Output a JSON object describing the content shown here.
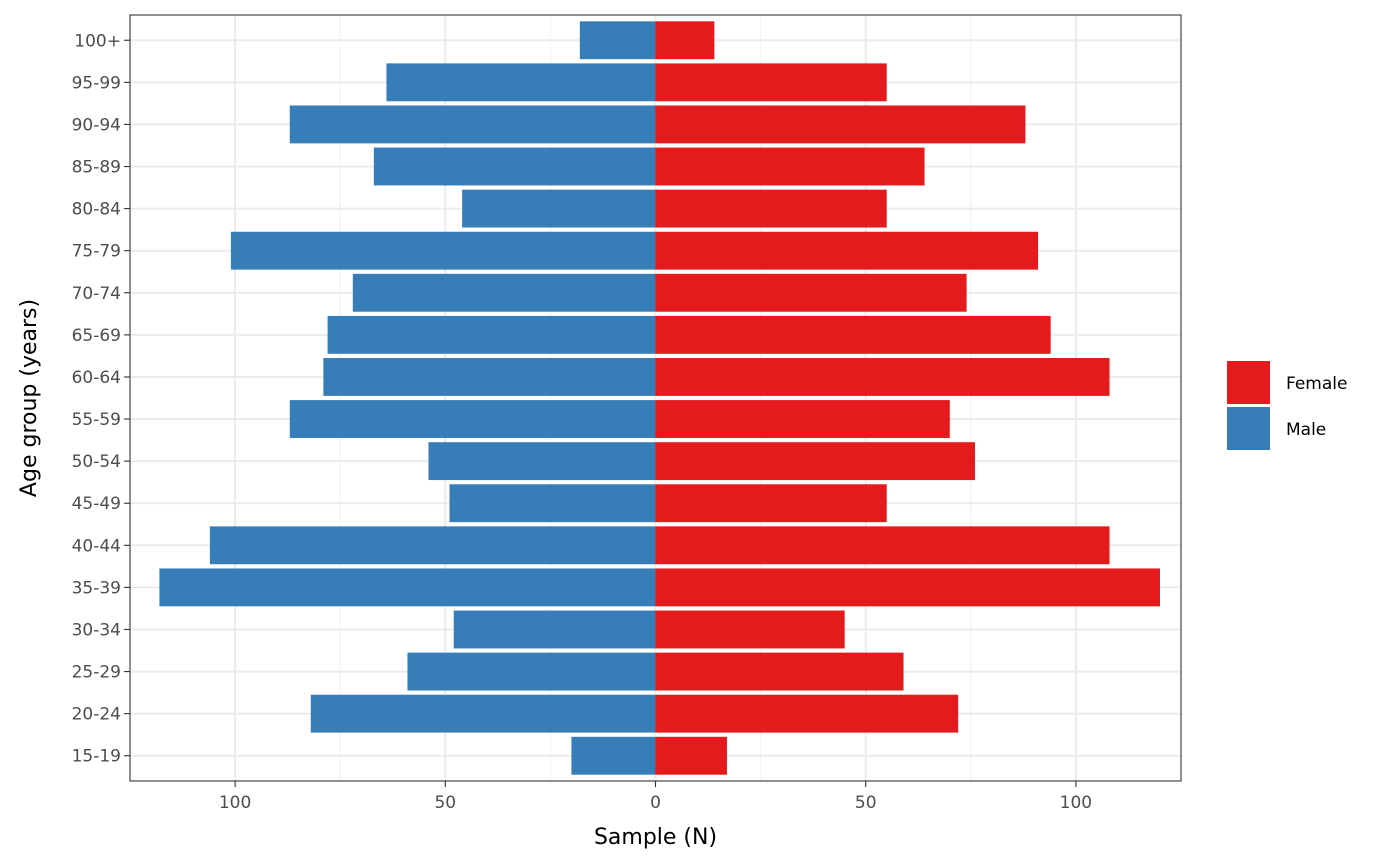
{
  "chart_data": {
    "type": "bar",
    "orientation": "horizontal",
    "layout": "population-pyramid",
    "xlabel": "Sample (N)",
    "ylabel": "Age group (years)",
    "xlim": [
      -125,
      125
    ],
    "x_ticks": [
      -100,
      -50,
      0,
      50,
      100
    ],
    "x_tick_labels": [
      "100",
      "50",
      "0",
      "50",
      "100"
    ],
    "categories": [
      "15-19",
      "20-24",
      "25-29",
      "30-34",
      "35-39",
      "40-44",
      "45-49",
      "50-54",
      "55-59",
      "60-64",
      "65-69",
      "70-74",
      "75-79",
      "80-84",
      "85-89",
      "90-94",
      "95-99",
      "100+"
    ],
    "series": [
      {
        "name": "Female",
        "color": "#E41A1C",
        "direction": "right",
        "values": [
          17,
          72,
          59,
          45,
          120,
          108,
          55,
          76,
          70,
          108,
          94,
          74,
          91,
          55,
          64,
          88,
          55,
          14
        ]
      },
      {
        "name": "Male",
        "color": "#377EB8",
        "direction": "left",
        "values": [
          20,
          82,
          59,
          48,
          118,
          106,
          49,
          54,
          87,
          79,
          78,
          72,
          101,
          46,
          67,
          87,
          64,
          18
        ]
      }
    ],
    "grid": true,
    "legend_position": "right"
  }
}
